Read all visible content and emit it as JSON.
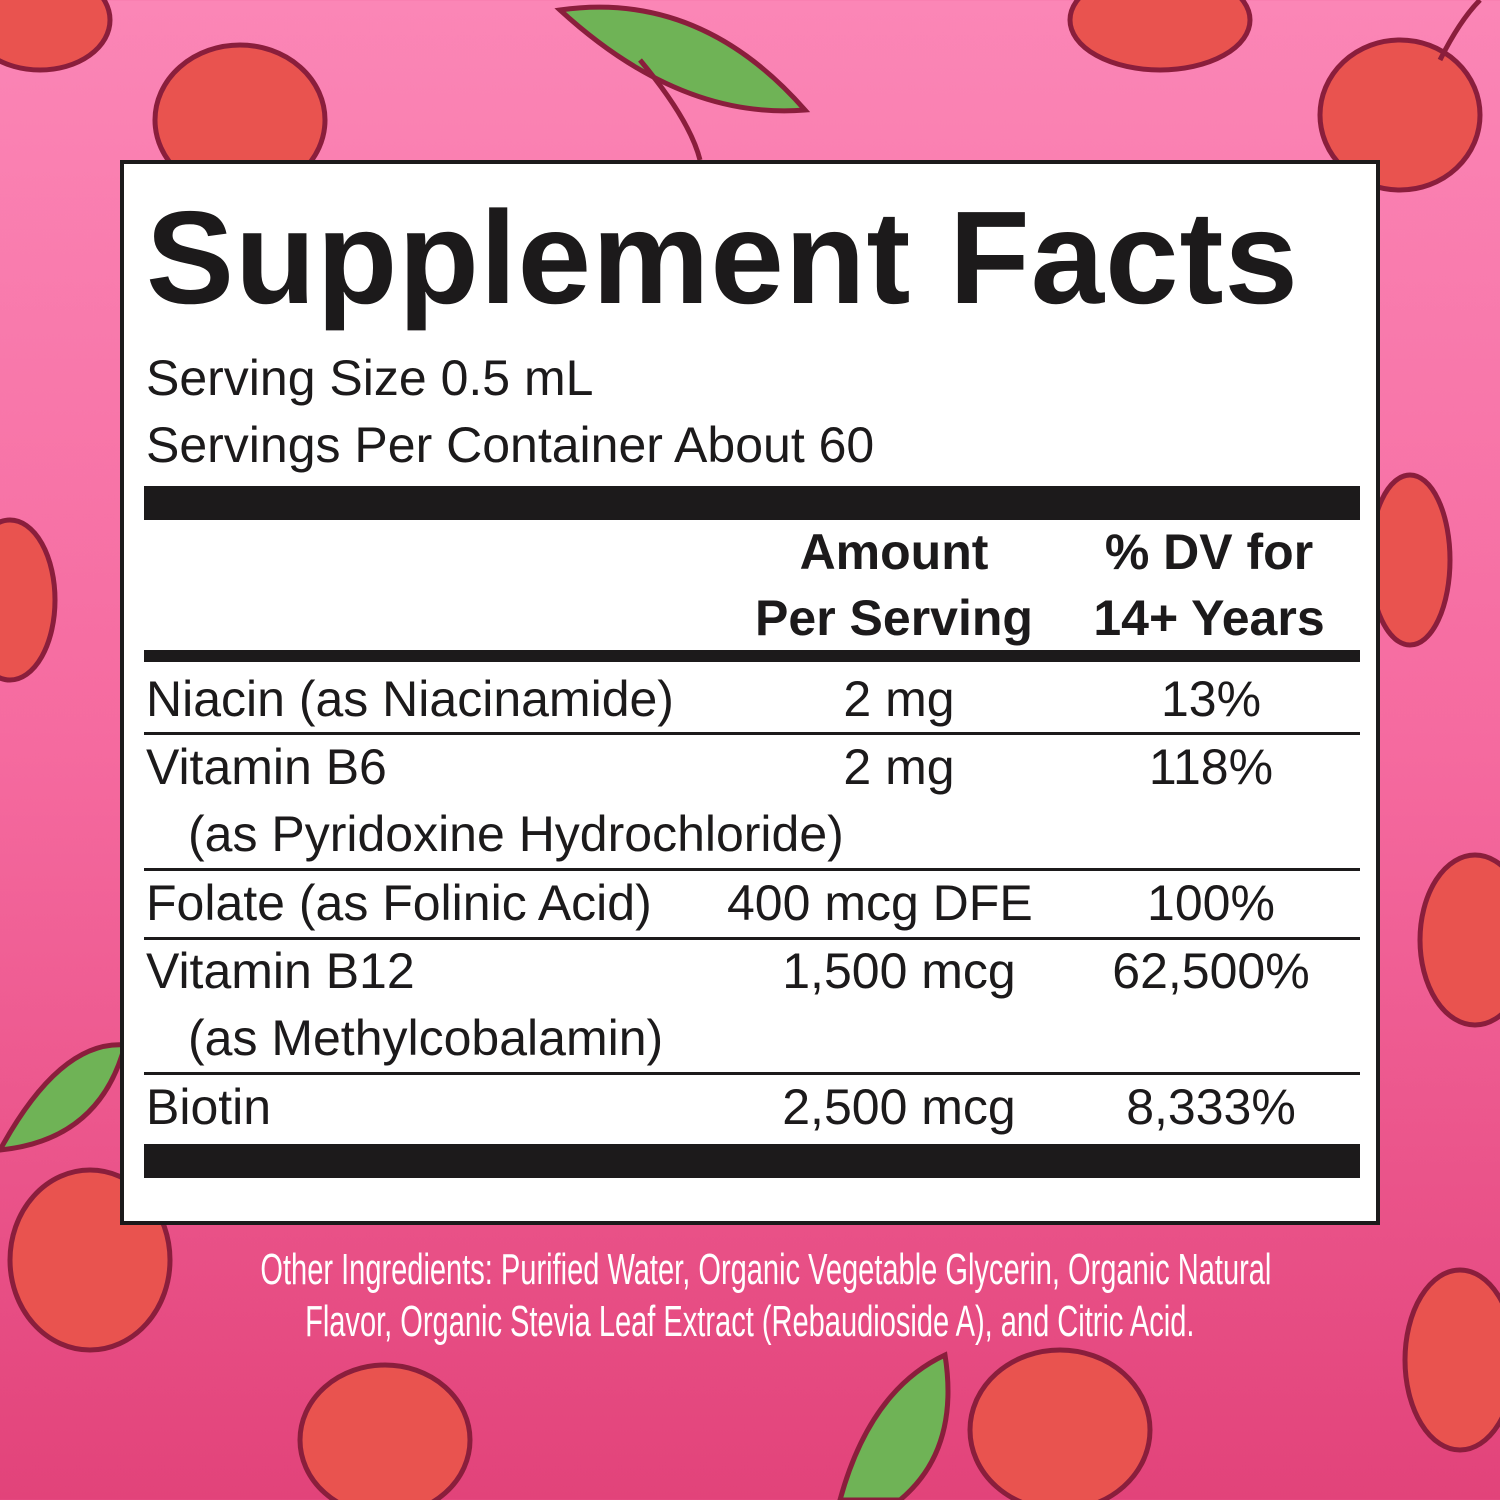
{
  "title": "Supplement Facts",
  "serving_size": "Serving Size 0.5 mL",
  "servings_per_container": "Servings Per Container About 60",
  "header": {
    "amount_line1": "Amount",
    "amount_line2": "Per Serving",
    "dv_line1": "% DV for",
    "dv_line2": "14+ Years"
  },
  "rows": [
    {
      "name": "Niacin (as Niacinamide)",
      "amount": "2 mg",
      "dv": "13%"
    },
    {
      "name": "Vitamin B6",
      "sub": "(as Pyridoxine Hydrochloride)",
      "amount": "2 mg",
      "dv": "118%"
    },
    {
      "name": "Folate (as Folinic Acid)",
      "amount": "400 mcg DFE",
      "dv": "100%"
    },
    {
      "name": "Vitamin B12",
      "sub": "(as Methylcobalamin)",
      "amount": "1,500 mcg",
      "dv": "62,500%"
    },
    {
      "name": "Biotin",
      "amount": "2,500 mcg",
      "dv": "8,333%"
    }
  ],
  "other_ingredients": {
    "line1": "Other Ingredients: Purified Water, Organic Vegetable Glycerin, Organic Natural",
    "line2": "Flavor, Organic Stevia Leaf Extract (Rebaudioside A), and Citric Acid."
  },
  "colors": {
    "background_top": "#fb86b6",
    "background_bottom": "#e2437a",
    "cherry": "#e9534f",
    "leaf": "#6fb356",
    "ink": "#1c1a1b"
  }
}
